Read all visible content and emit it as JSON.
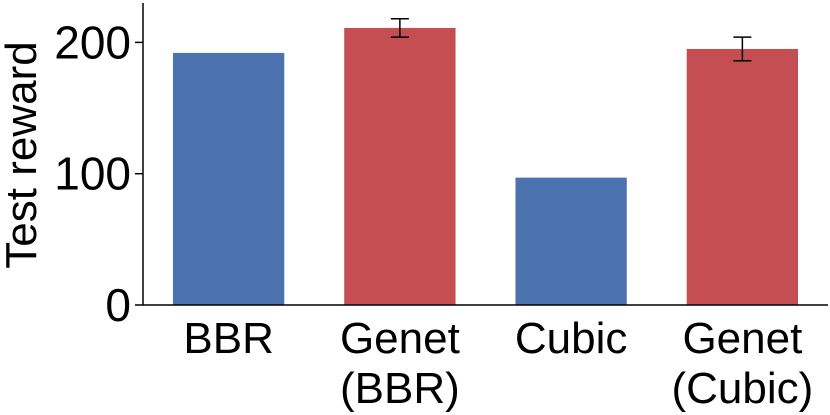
{
  "chart_data": {
    "type": "bar",
    "categories": [
      [
        "BBR"
      ],
      [
        "Genet",
        "(BBR)"
      ],
      [
        "Cubic"
      ],
      [
        "Genet",
        "(Cubic)"
      ]
    ],
    "values": [
      192,
      211,
      97,
      195
    ],
    "error": [
      null,
      7,
      null,
      9
    ],
    "colors": [
      "#4c72b0",
      "#c44e52",
      "#4c72b0",
      "#c44e52"
    ],
    "ylabel": "Test reward",
    "ylim": [
      0,
      230
    ],
    "yticks": [
      0,
      100,
      200
    ],
    "grid": false
  }
}
